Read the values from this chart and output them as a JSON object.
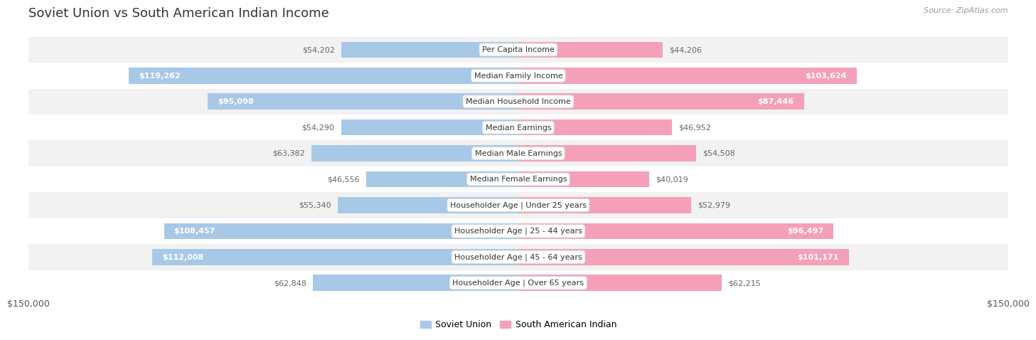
{
  "title": "Soviet Union vs South American Indian Income",
  "source": "Source: ZipAtlas.com",
  "categories": [
    "Per Capita Income",
    "Median Family Income",
    "Median Household Income",
    "Median Earnings",
    "Median Male Earnings",
    "Median Female Earnings",
    "Householder Age | Under 25 years",
    "Householder Age | 25 - 44 years",
    "Householder Age | 45 - 64 years",
    "Householder Age | Over 65 years"
  ],
  "soviet_values": [
    54202,
    119262,
    95098,
    54290,
    63382,
    46556,
    55340,
    108457,
    112008,
    62848
  ],
  "sa_indian_values": [
    44206,
    103624,
    87446,
    46952,
    54508,
    40019,
    52979,
    96497,
    101171,
    62215
  ],
  "max_val": 150000,
  "soviet_color": "#a8c8e8",
  "sa_color": "#f4a0b8",
  "threshold": 80000,
  "bar_height": 0.62,
  "row_bg_even": "#f2f2f2",
  "row_bg_odd": "#ffffff",
  "legend_soviet": "Soviet Union",
  "legend_sa": "South American Indian",
  "x_tick_label_left": "$150,000",
  "x_tick_label_right": "$150,000",
  "title_fontsize": 13,
  "label_fontsize": 8,
  "cat_fontsize": 8
}
